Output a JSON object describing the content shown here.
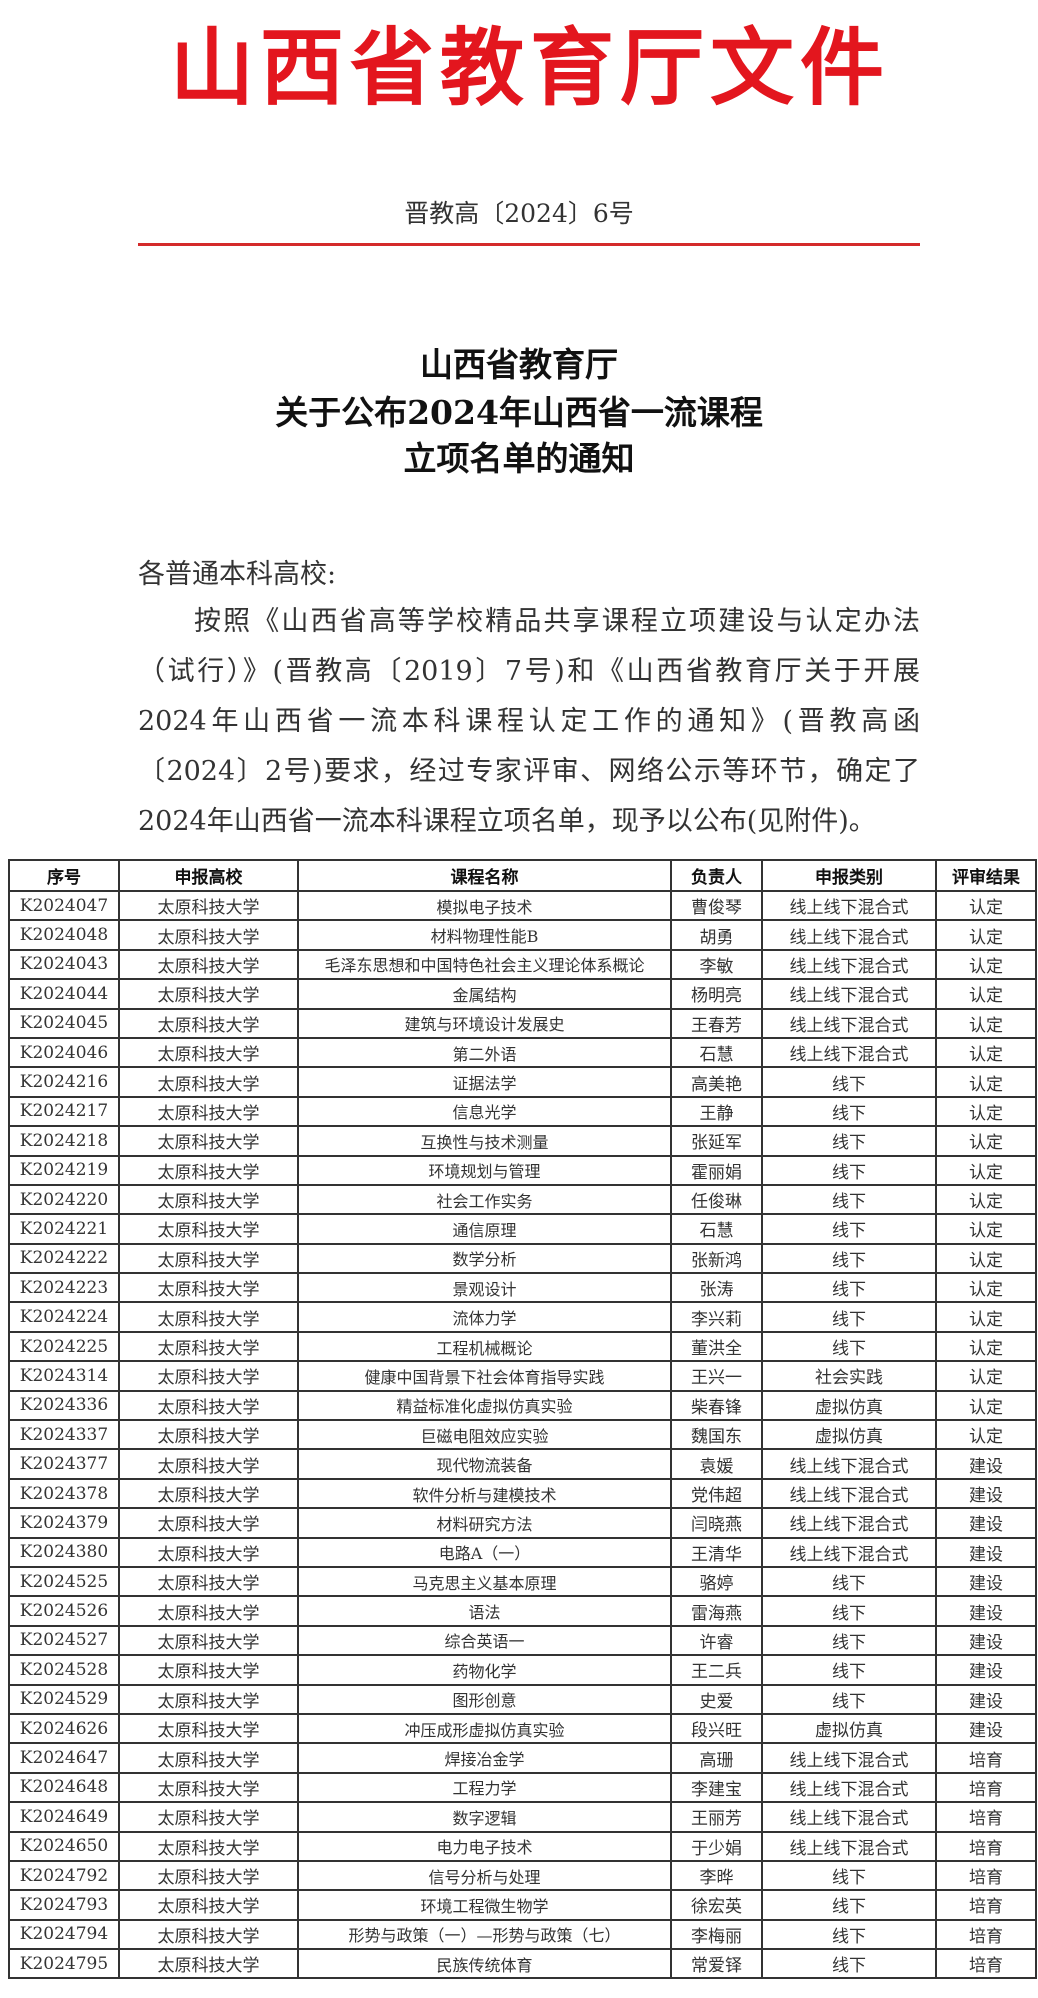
{
  "header": {
    "issuer_banner": "山西省教育厅文件",
    "document_number": "晋教高〔2024〕6号",
    "accent_color": "#e3161e"
  },
  "title": {
    "lines": [
      "山西省教育厅",
      "关于公布2024年山西省一流课程",
      "立项名单的通知"
    ]
  },
  "body": {
    "salutation": "各普通本科高校:",
    "paragraph": "按照《山西省高等学校精品共享课程立项建设与认定办法（试行）》(晋教高〔2019〕7号)和《山西省教育厅关于开展2024年山西省一流本科课程认定工作的通知》(晋教高函〔2024〕2号)要求，经过专家评审、网络公示等环节，确定了2024年山西省一流本科课程立项名单，现予以公布(见附件)。"
  },
  "table": {
    "columns": [
      "序号",
      "申报高校",
      "课程名称",
      "负责人",
      "申报类别",
      "评审结果"
    ],
    "rows": [
      [
        "K2024047",
        "太原科技大学",
        "模拟电子技术",
        "曹俊琴",
        "线上线下混合式",
        "认定"
      ],
      [
        "K2024048",
        "太原科技大学",
        "材料物理性能B",
        "胡勇",
        "线上线下混合式",
        "认定"
      ],
      [
        "K2024043",
        "太原科技大学",
        "毛泽东思想和中国特色社会主义理论体系概论",
        "李敏",
        "线上线下混合式",
        "认定"
      ],
      [
        "K2024044",
        "太原科技大学",
        "金属结构",
        "杨明亮",
        "线上线下混合式",
        "认定"
      ],
      [
        "K2024045",
        "太原科技大学",
        "建筑与环境设计发展史",
        "王春芳",
        "线上线下混合式",
        "认定"
      ],
      [
        "K2024046",
        "太原科技大学",
        "第二外语",
        "石慧",
        "线上线下混合式",
        "认定"
      ],
      [
        "K2024216",
        "太原科技大学",
        "证据法学",
        "高美艳",
        "线下",
        "认定"
      ],
      [
        "K2024217",
        "太原科技大学",
        "信息光学",
        "王静",
        "线下",
        "认定"
      ],
      [
        "K2024218",
        "太原科技大学",
        "互换性与技术测量",
        "张延军",
        "线下",
        "认定"
      ],
      [
        "K2024219",
        "太原科技大学",
        "环境规划与管理",
        "霍丽娟",
        "线下",
        "认定"
      ],
      [
        "K2024220",
        "太原科技大学",
        "社会工作实务",
        "任俊琳",
        "线下",
        "认定"
      ],
      [
        "K2024221",
        "太原科技大学",
        "通信原理",
        "石慧",
        "线下",
        "认定"
      ],
      [
        "K2024222",
        "太原科技大学",
        "数学分析",
        "张新鸿",
        "线下",
        "认定"
      ],
      [
        "K2024223",
        "太原科技大学",
        "景观设计",
        "张涛",
        "线下",
        "认定"
      ],
      [
        "K2024224",
        "太原科技大学",
        "流体力学",
        "李兴莉",
        "线下",
        "认定"
      ],
      [
        "K2024225",
        "太原科技大学",
        "工程机械概论",
        "董洪全",
        "线下",
        "认定"
      ],
      [
        "K2024314",
        "太原科技大学",
        "健康中国背景下社会体育指导实践",
        "王兴一",
        "社会实践",
        "认定"
      ],
      [
        "K2024336",
        "太原科技大学",
        "精益标准化虚拟仿真实验",
        "柴春锋",
        "虚拟仿真",
        "认定"
      ],
      [
        "K2024337",
        "太原科技大学",
        "巨磁电阻效应实验",
        "魏国东",
        "虚拟仿真",
        "认定"
      ],
      [
        "K2024377",
        "太原科技大学",
        "现代物流装备",
        "袁媛",
        "线上线下混合式",
        "建设"
      ],
      [
        "K2024378",
        "太原科技大学",
        "软件分析与建模技术",
        "党伟超",
        "线上线下混合式",
        "建设"
      ],
      [
        "K2024379",
        "太原科技大学",
        "材料研究方法",
        "闫晓燕",
        "线上线下混合式",
        "建设"
      ],
      [
        "K2024380",
        "太原科技大学",
        "电路A（一）",
        "王清华",
        "线上线下混合式",
        "建设"
      ],
      [
        "K2024525",
        "太原科技大学",
        "马克思主义基本原理",
        "骆婷",
        "线下",
        "建设"
      ],
      [
        "K2024526",
        "太原科技大学",
        "语法",
        "雷海燕",
        "线下",
        "建设"
      ],
      [
        "K2024527",
        "太原科技大学",
        "综合英语一",
        "许睿",
        "线下",
        "建设"
      ],
      [
        "K2024528",
        "太原科技大学",
        "药物化学",
        "王二兵",
        "线下",
        "建设"
      ],
      [
        "K2024529",
        "太原科技大学",
        "图形创意",
        "史爱",
        "线下",
        "建设"
      ],
      [
        "K2024626",
        "太原科技大学",
        "冲压成形虚拟仿真实验",
        "段兴旺",
        "虚拟仿真",
        "建设"
      ],
      [
        "K2024647",
        "太原科技大学",
        "焊接冶金学",
        "高珊",
        "线上线下混合式",
        "培育"
      ],
      [
        "K2024648",
        "太原科技大学",
        "工程力学",
        "李建宝",
        "线上线下混合式",
        "培育"
      ],
      [
        "K2024649",
        "太原科技大学",
        "数字逻辑",
        "王丽芳",
        "线上线下混合式",
        "培育"
      ],
      [
        "K2024650",
        "太原科技大学",
        "电力电子技术",
        "于少娟",
        "线上线下混合式",
        "培育"
      ],
      [
        "K2024792",
        "太原科技大学",
        "信号分析与处理",
        "李晔",
        "线下",
        "培育"
      ],
      [
        "K2024793",
        "太原科技大学",
        "环境工程微生物学",
        "徐宏英",
        "线下",
        "培育"
      ],
      [
        "K2024794",
        "太原科技大学",
        "形势与政策（一）—形势与政策（七）",
        "李梅丽",
        "线下",
        "培育"
      ],
      [
        "K2024795",
        "太原科技大学",
        "民族传统体育",
        "常爱铎",
        "线下",
        "培育"
      ]
    ]
  }
}
